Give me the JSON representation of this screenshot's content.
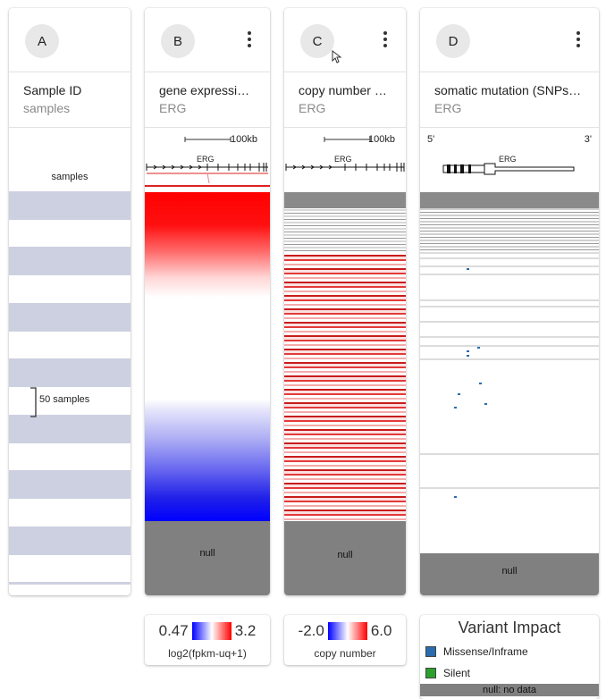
{
  "columns": [
    {
      "badge": "A",
      "title": "Sample ID",
      "subtitle": "samples",
      "has_menu": false
    },
    {
      "badge": "B",
      "title": "gene expressi…",
      "subtitle": "ERG",
      "has_menu": true
    },
    {
      "badge": "C",
      "title": "copy number …",
      "subtitle": "ERG",
      "has_menu": true
    },
    {
      "badge": "D",
      "title": "somatic mutation (SNPs…",
      "subtitle": "ERG",
      "has_menu": true
    }
  ],
  "samples_column": {
    "label": "samples",
    "bracket_label": "50 samples"
  },
  "gene_track": {
    "gene": "ERG",
    "scale_label": "100kb",
    "five_prime": "5'",
    "three_prime": "3'"
  },
  "null_label": "null",
  "expression_legend": {
    "min": "0.47",
    "max": "3.2",
    "caption": "log2(fpkm-uq+1)"
  },
  "copy_number_legend": {
    "min": "-2.0",
    "max": "6.0",
    "caption": "copy number"
  },
  "variant_impact": {
    "title": "Variant Impact",
    "items": [
      {
        "label": "Missense/Inframe",
        "color": "#2a6cb0"
      },
      {
        "label": "Silent",
        "color": "#2ca02c"
      }
    ],
    "null_text": "null: no data"
  },
  "colors": {
    "high": "#ff0000",
    "low": "#0000ff",
    "null_gray": "#808080",
    "band": "#cdd0e0"
  }
}
